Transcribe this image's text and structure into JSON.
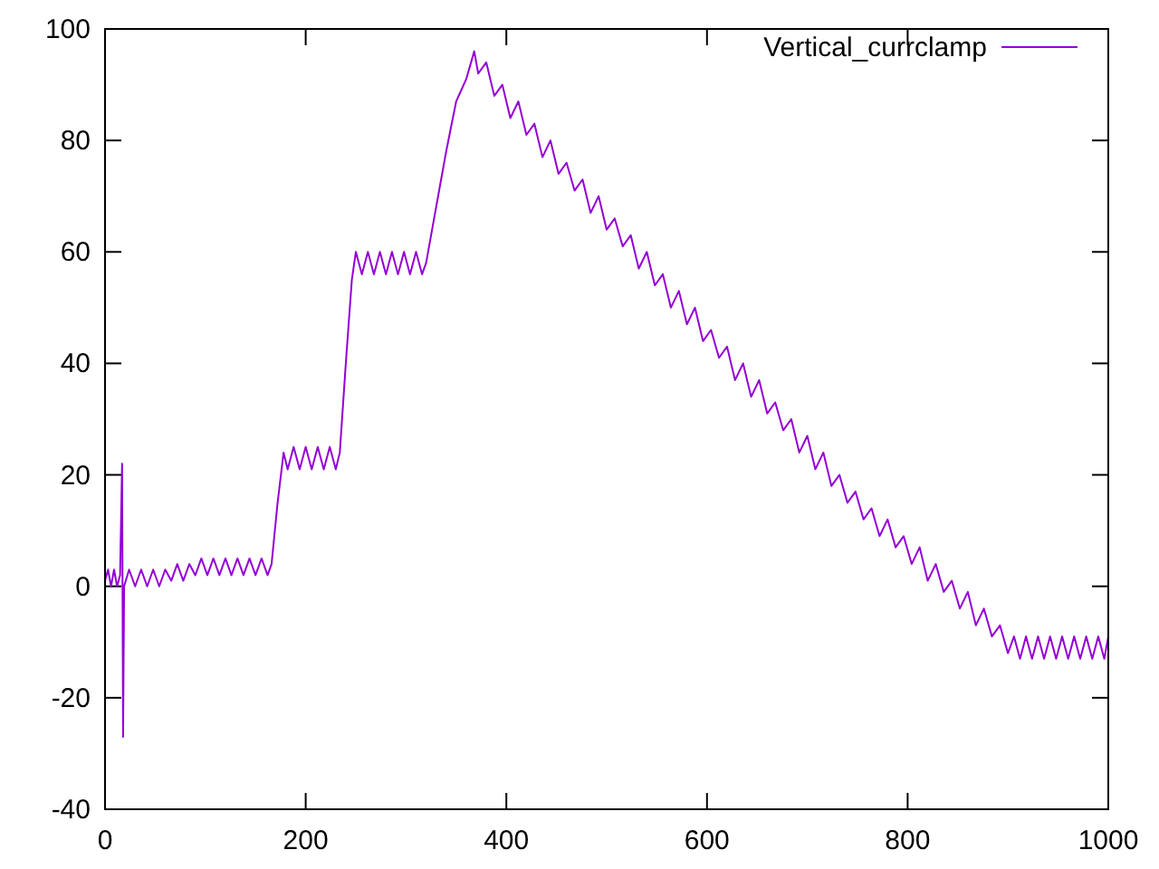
{
  "chart_data": {
    "type": "line",
    "legend": "top right",
    "xlim": [
      0,
      1000
    ],
    "xticks": [
      0,
      200,
      400,
      600,
      800,
      1000
    ],
    "ylim": [
      -40,
      100
    ],
    "yticks": [
      -40,
      -20,
      0,
      20,
      40,
      60,
      80,
      100
    ],
    "series": [
      {
        "name": "Vertical_currclamp",
        "color": "#9400d3",
        "x": [
          0,
          3,
          6,
          9,
          12,
          15,
          17,
          18,
          19,
          24,
          30,
          36,
          42,
          48,
          54,
          60,
          66,
          72,
          78,
          84,
          90,
          96,
          102,
          108,
          114,
          120,
          126,
          132,
          138,
          144,
          150,
          156,
          162,
          166,
          172,
          178,
          182,
          188,
          194,
          200,
          206,
          212,
          218,
          224,
          230,
          234,
          240,
          246,
          250,
          256,
          262,
          268,
          274,
          280,
          286,
          292,
          298,
          304,
          310,
          316,
          320,
          330,
          340,
          350,
          360,
          368,
          372,
          380,
          388,
          396,
          404,
          412,
          420,
          428,
          436,
          444,
          452,
          460,
          468,
          476,
          484,
          492,
          500,
          508,
          516,
          524,
          532,
          540,
          548,
          556,
          564,
          572,
          580,
          588,
          596,
          604,
          612,
          620,
          628,
          636,
          644,
          652,
          660,
          668,
          676,
          684,
          692,
          700,
          708,
          716,
          724,
          732,
          740,
          748,
          756,
          764,
          772,
          780,
          788,
          796,
          804,
          812,
          820,
          828,
          836,
          844,
          852,
          860,
          868,
          876,
          884,
          892,
          900,
          906,
          912,
          918,
          924,
          930,
          936,
          942,
          948,
          954,
          960,
          966,
          972,
          978,
          984,
          990,
          996,
          1000
        ],
        "values": [
          1,
          3,
          0,
          3,
          0,
          2,
          22,
          -27,
          0,
          3,
          0,
          3,
          0,
          3,
          0,
          3,
          1,
          4,
          1,
          4,
          2,
          5,
          2,
          5,
          2,
          5,
          2,
          5,
          2,
          5,
          2,
          5,
          2,
          4,
          15,
          24,
          21,
          25,
          21,
          25,
          21,
          25,
          21,
          25,
          21,
          24,
          40,
          55,
          60,
          56,
          60,
          56,
          60,
          56,
          60,
          56,
          60,
          56,
          60,
          56,
          58,
          68,
          78,
          87,
          91,
          96,
          92,
          94,
          88,
          90,
          84,
          87,
          81,
          83,
          77,
          80,
          74,
          76,
          71,
          73,
          67,
          70,
          64,
          66,
          61,
          63,
          57,
          60,
          54,
          56,
          50,
          53,
          47,
          50,
          44,
          46,
          41,
          43,
          37,
          40,
          34,
          37,
          31,
          33,
          28,
          30,
          24,
          27,
          21,
          24,
          18,
          20,
          15,
          17,
          12,
          14,
          9,
          12,
          7,
          9,
          4,
          7,
          1,
          4,
          -1,
          1,
          -4,
          -1,
          -7,
          -4,
          -9,
          -7,
          -12,
          -9,
          -13,
          -9,
          -13,
          -9,
          -13,
          -9,
          -13,
          -9,
          -13,
          -9,
          -13,
          -9,
          -13,
          -9,
          -13,
          -9
        ]
      }
    ]
  }
}
